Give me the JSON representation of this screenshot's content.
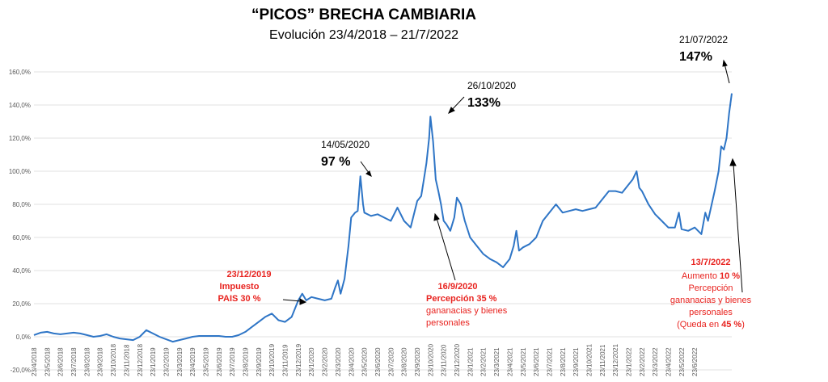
{
  "chart_data": {
    "type": "line",
    "title": "“PICOS” BRECHA CAMBIARIA",
    "subtitle": "Evolución 23/4/2018 – 21/7/2022",
    "xlabel": "",
    "ylabel": "",
    "ylim": [
      -20,
      160
    ],
    "y_ticks": [
      "-20,0%",
      "0,0%",
      "20,0%",
      "40,0%",
      "60,0%",
      "80,0%",
      "100,0%",
      "120,0%",
      "140,0%",
      "160,0%"
    ],
    "y_tick_values": [
      -20,
      0,
      20,
      40,
      60,
      80,
      100,
      120,
      140,
      160
    ],
    "categories": [
      "23/4/2018",
      "23/5/2018",
      "23/6/2018",
      "23/7/2018",
      "23/8/2018",
      "23/9/2018",
      "23/10/2018",
      "23/11/2018",
      "23/12/2018",
      "23/1/2019",
      "23/2/2019",
      "23/3/2019",
      "23/4/2019",
      "23/5/2019",
      "23/6/2019",
      "23/7/2019",
      "23/8/2019",
      "23/9/2019",
      "23/10/2019",
      "23/11/2019",
      "23/12/2019",
      "23/1/2020",
      "23/2/2020",
      "23/3/2020",
      "23/4/2020",
      "23/5/2020",
      "23/6/2020",
      "23/7/2020",
      "23/8/2020",
      "23/9/2020",
      "23/10/2020",
      "23/11/2020",
      "23/12/2020",
      "23/1/2021",
      "23/2/2021",
      "23/3/2021",
      "23/4/2021",
      "23/5/2021",
      "23/6/2021",
      "23/7/2021",
      "23/8/2021",
      "23/9/2021",
      "23/10/2021",
      "23/11/2021",
      "23/12/2021",
      "23/1/2022",
      "23/2/2022",
      "23/3/2022",
      "23/4/2022",
      "23/5/2022",
      "23/6/2022"
    ],
    "series": [
      {
        "name": "Brecha cambiaria (%)",
        "color": "#2e75c6",
        "points": [
          [
            0,
            1
          ],
          [
            0.5,
            2.5
          ],
          [
            1,
            3
          ],
          [
            1.5,
            2
          ],
          [
            2,
            1.5
          ],
          [
            2.5,
            2
          ],
          [
            3,
            2.5
          ],
          [
            3.5,
            2
          ],
          [
            4,
            1
          ],
          [
            4.5,
            0
          ],
          [
            5,
            0.5
          ],
          [
            5.5,
            1.5
          ],
          [
            6,
            0
          ],
          [
            6.5,
            -1
          ],
          [
            7,
            -1.5
          ],
          [
            7.5,
            -2
          ],
          [
            8,
            0
          ],
          [
            8.5,
            4
          ],
          [
            9,
            2
          ],
          [
            9.5,
            0
          ],
          [
            10,
            -1.5
          ],
          [
            10.5,
            -3
          ],
          [
            11,
            -2
          ],
          [
            11.5,
            -1
          ],
          [
            12,
            0
          ],
          [
            12.5,
            0.5
          ],
          [
            13,
            0.5
          ],
          [
            13.5,
            0.5
          ],
          [
            14,
            0.5
          ],
          [
            14.5,
            0
          ],
          [
            15,
            0
          ],
          [
            15.5,
            1
          ],
          [
            16,
            3
          ],
          [
            16.5,
            6
          ],
          [
            17,
            9
          ],
          [
            17.5,
            12
          ],
          [
            18,
            14
          ],
          [
            18.5,
            10
          ],
          [
            19,
            9
          ],
          [
            19.5,
            12
          ],
          [
            20,
            22
          ],
          [
            20.3,
            26
          ],
          [
            20.6,
            22
          ],
          [
            21,
            24
          ],
          [
            21.5,
            23
          ],
          [
            22,
            22
          ],
          [
            22.5,
            23
          ],
          [
            22.8,
            30
          ],
          [
            23,
            34
          ],
          [
            23.2,
            26
          ],
          [
            23.5,
            35
          ],
          [
            23.8,
            55
          ],
          [
            24,
            72
          ],
          [
            24.3,
            75
          ],
          [
            24.5,
            76
          ],
          [
            24.7,
            97
          ],
          [
            24.9,
            80
          ],
          [
            25,
            75
          ],
          [
            25.5,
            73
          ],
          [
            26,
            74
          ],
          [
            26.5,
            72
          ],
          [
            27,
            70
          ],
          [
            27.5,
            78
          ],
          [
            28,
            70
          ],
          [
            28.5,
            66
          ],
          [
            29,
            82
          ],
          [
            29.3,
            85
          ],
          [
            29.5,
            95
          ],
          [
            29.7,
            105
          ],
          [
            29.9,
            120
          ],
          [
            30,
            133
          ],
          [
            30.2,
            118
          ],
          [
            30.4,
            95
          ],
          [
            30.6,
            88
          ],
          [
            30.8,
            80
          ],
          [
            31,
            70
          ],
          [
            31.2,
            68
          ],
          [
            31.5,
            64
          ],
          [
            31.8,
            72
          ],
          [
            32,
            84
          ],
          [
            32.3,
            80
          ],
          [
            32.6,
            70
          ],
          [
            33,
            60
          ],
          [
            33.5,
            55
          ],
          [
            34,
            50
          ],
          [
            34.5,
            47
          ],
          [
            35,
            45
          ],
          [
            35.5,
            42
          ],
          [
            36,
            47
          ],
          [
            36.3,
            55
          ],
          [
            36.5,
            64
          ],
          [
            36.7,
            52
          ],
          [
            37,
            54
          ],
          [
            37.5,
            56
          ],
          [
            38,
            60
          ],
          [
            38.5,
            70
          ],
          [
            39,
            75
          ],
          [
            39.5,
            80
          ],
          [
            40,
            75
          ],
          [
            40.5,
            76
          ],
          [
            41,
            77
          ],
          [
            41.5,
            76
          ],
          [
            42,
            77
          ],
          [
            42.5,
            78
          ],
          [
            43,
            83
          ],
          [
            43.5,
            88
          ],
          [
            44,
            88
          ],
          [
            44.5,
            87
          ],
          [
            45,
            92
          ],
          [
            45.3,
            95
          ],
          [
            45.6,
            100
          ],
          [
            45.8,
            90
          ],
          [
            46,
            88
          ],
          [
            46.5,
            80
          ],
          [
            47,
            74
          ],
          [
            47.5,
            70
          ],
          [
            48,
            66
          ],
          [
            48.5,
            66
          ],
          [
            48.8,
            75
          ],
          [
            49,
            65
          ],
          [
            49.5,
            64
          ],
          [
            50,
            66
          ],
          [
            50.5,
            62
          ],
          [
            50.8,
            75
          ],
          [
            51,
            70
          ],
          [
            51.5,
            88
          ],
          [
            51.8,
            100
          ],
          [
            52,
            115
          ],
          [
            52.2,
            113
          ],
          [
            52.4,
            120
          ],
          [
            52.6,
            135
          ],
          [
            52.8,
            147
          ]
        ]
      }
    ],
    "annotations": [
      {
        "date": "14/05/2020",
        "value_label": "97 %",
        "value": 97
      },
      {
        "date": "26/10/2020",
        "value_label": "133%",
        "value": 133
      },
      {
        "date": "21/07/2022",
        "value_label": "147%",
        "value": 147
      },
      {
        "date": "23/12/2019",
        "lines": [
          "Impuesto",
          "PAIS 30 %"
        ]
      },
      {
        "date": "16/9/2020",
        "lines": [
          "Percepción 35 %",
          "gananacias y bienes",
          "personales"
        ]
      },
      {
        "date": "13/7/2022",
        "lines": [
          "Aumento",
          "10 %",
          "Percepción",
          "gananacias y bienes",
          "personales",
          "(Queda en",
          "45 %",
          ")"
        ]
      }
    ]
  }
}
